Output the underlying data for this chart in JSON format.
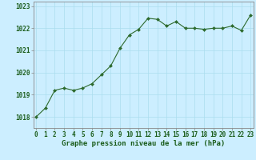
{
  "x": [
    0,
    1,
    2,
    3,
    4,
    5,
    6,
    7,
    8,
    9,
    10,
    11,
    12,
    13,
    14,
    15,
    16,
    17,
    18,
    19,
    20,
    21,
    22,
    23
  ],
  "y": [
    1018.0,
    1018.4,
    1019.2,
    1019.3,
    1019.2,
    1019.3,
    1019.5,
    1019.9,
    1020.3,
    1021.1,
    1021.7,
    1021.95,
    1022.45,
    1022.4,
    1022.1,
    1022.3,
    1022.0,
    1022.0,
    1021.95,
    1022.0,
    1022.0,
    1022.1,
    1021.9,
    1022.6
  ],
  "ylim": [
    1017.5,
    1023.2
  ],
  "yticks": [
    1018,
    1019,
    1020,
    1021,
    1022,
    1023
  ],
  "xticks": [
    0,
    1,
    2,
    3,
    4,
    5,
    6,
    7,
    8,
    9,
    10,
    11,
    12,
    13,
    14,
    15,
    16,
    17,
    18,
    19,
    20,
    21,
    22,
    23
  ],
  "xlabel": "Graphe pression niveau de la mer (hPa)",
  "line_color": "#2d6a2d",
  "marker": "D",
  "marker_size": 2.0,
  "background_color": "#cceeff",
  "grid_color": "#aaddee",
  "xlabel_color": "#1a5c1a",
  "tick_color": "#1a5c1a",
  "axis_color": "#888888",
  "xlabel_fontsize": 6.5,
  "tick_fontsize": 5.5
}
